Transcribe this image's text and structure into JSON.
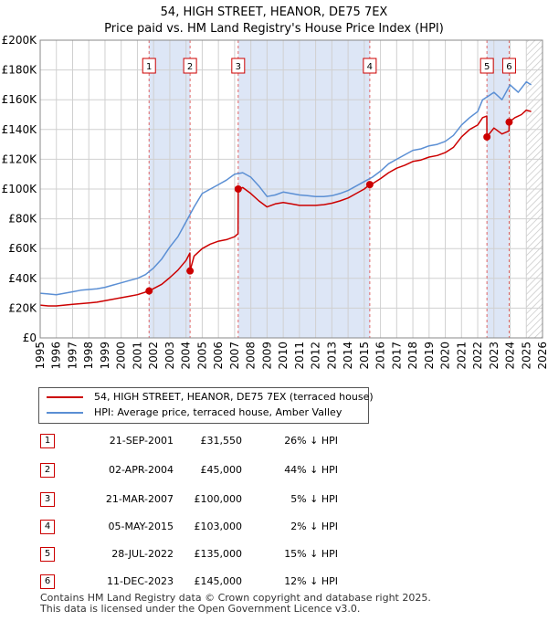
{
  "title_line1": "54, HIGH STREET, HEANOR, DE75 7EX",
  "title_line2": "Price paid vs. HM Land Registry's House Price Index (HPI)",
  "legend": {
    "property_label": "54, HIGH STREET, HEANOR, DE75 7EX (terraced house)",
    "hpi_label": "HPI: Average price, terraced house, Amber Valley"
  },
  "colors": {
    "property": "#cc0000",
    "hpi": "#5b8fd4",
    "shade": "#dde6f6",
    "grid": "#d0d0d0",
    "marker_line": "#e06666"
  },
  "sales": [
    {
      "num": "1",
      "date": "21-SEP-2001",
      "price": "£31,550",
      "hpi": "26% ↓ HPI"
    },
    {
      "num": "2",
      "date": "02-APR-2004",
      "price": "£45,000",
      "hpi": "44% ↓ HPI"
    },
    {
      "num": "3",
      "date": "21-MAR-2007",
      "price": "£100,000",
      "hpi": "5% ↓ HPI"
    },
    {
      "num": "4",
      "date": "05-MAY-2015",
      "price": "£103,000",
      "hpi": "2% ↓ HPI"
    },
    {
      "num": "5",
      "date": "28-JUL-2022",
      "price": "£135,000",
      "hpi": "15% ↓ HPI"
    },
    {
      "num": "6",
      "date": "11-DEC-2023",
      "price": "£145,000",
      "hpi": "12% ↓ HPI"
    }
  ],
  "footer_line1": "Contains HM Land Registry data © Crown copyright and database right 2025.",
  "footer_line2": "This data is licensed under the Open Government Licence v3.0.",
  "chart_data": {
    "type": "line",
    "title": "Price paid vs. HM Land Registry's House Price Index (HPI)",
    "xlabel": "",
    "ylabel": "",
    "xlim": [
      1995,
      2026
    ],
    "ylim": [
      0,
      200000
    ],
    "x_ticks": [
      "1995",
      "1996",
      "1997",
      "1998",
      "1999",
      "2000",
      "2001",
      "2002",
      "2003",
      "2004",
      "2005",
      "2006",
      "2007",
      "2008",
      "2009",
      "2010",
      "2011",
      "2012",
      "2013",
      "2014",
      "2015",
      "2016",
      "2017",
      "2018",
      "2019",
      "2020",
      "2021",
      "2022",
      "2023",
      "2024",
      "2025",
      "2026"
    ],
    "y_ticks": [
      {
        "value": 0,
        "label": "£0"
      },
      {
        "value": 20000,
        "label": "£20K"
      },
      {
        "value": 40000,
        "label": "£40K"
      },
      {
        "value": 60000,
        "label": "£60K"
      },
      {
        "value": 80000,
        "label": "£80K"
      },
      {
        "value": 100000,
        "label": "£100K"
      },
      {
        "value": 120000,
        "label": "£120K"
      },
      {
        "value": 140000,
        "label": "£140K"
      },
      {
        "value": 160000,
        "label": "£160K"
      },
      {
        "value": 180000,
        "label": "£180K"
      },
      {
        "value": 200000,
        "label": "£200K"
      }
    ],
    "shaded_ranges": [
      [
        2001.72,
        2004.25
      ],
      [
        2007.22,
        2015.34
      ],
      [
        2022.57,
        2023.94
      ]
    ],
    "hatched_after": 2025.0,
    "series": [
      {
        "name": "HPI: Average price, terraced house, Amber Valley",
        "x": [
          1995.0,
          1995.5,
          1996.0,
          1996.5,
          1997.0,
          1997.5,
          1998.0,
          1998.5,
          1999.0,
          1999.5,
          2000.0,
          2000.5,
          2001.0,
          2001.5,
          2002.0,
          2002.5,
          2003.0,
          2003.5,
          2004.0,
          2004.5,
          2005.0,
          2005.5,
          2006.0,
          2006.5,
          2007.0,
          2007.5,
          2008.0,
          2008.5,
          2009.0,
          2009.5,
          2010.0,
          2010.5,
          2011.0,
          2011.5,
          2012.0,
          2012.5,
          2013.0,
          2013.5,
          2014.0,
          2014.5,
          2015.0,
          2015.5,
          2016.0,
          2016.5,
          2017.0,
          2017.5,
          2018.0,
          2018.5,
          2019.0,
          2019.5,
          2020.0,
          2020.5,
          2021.0,
          2021.5,
          2022.0,
          2022.3,
          2022.6,
          2023.0,
          2023.5,
          2024.0,
          2024.5,
          2025.0,
          2025.3
        ],
        "values": [
          30000,
          29500,
          29000,
          30000,
          31000,
          32000,
          32500,
          33000,
          34000,
          35500,
          37000,
          38500,
          40000,
          42500,
          47000,
          53000,
          61000,
          68000,
          78000,
          88000,
          97000,
          100000,
          103000,
          106000,
          110000,
          111000,
          108000,
          102000,
          95000,
          96000,
          98000,
          97000,
          96000,
          95500,
          95000,
          95000,
          95500,
          97000,
          99000,
          102000,
          105000,
          108000,
          112000,
          117000,
          120000,
          123000,
          126000,
          127000,
          129000,
          130000,
          132000,
          136000,
          143000,
          148000,
          152000,
          160000,
          162000,
          165000,
          160000,
          170000,
          165000,
          172000,
          170000
        ]
      },
      {
        "name": "54, HIGH STREET, HEANOR, DE75 7EX (terraced house)",
        "x": [
          1995.0,
          1995.5,
          1996.0,
          1996.5,
          1997.0,
          1997.5,
          1998.0,
          1998.5,
          1999.0,
          1999.5,
          2000.0,
          2000.5,
          2001.0,
          2001.72,
          2002.5,
          2003.0,
          2003.5,
          2004.0,
          2004.24,
          2004.25,
          2004.5,
          2005.0,
          2005.5,
          2006.0,
          2006.5,
          2007.0,
          2007.21,
          2007.22,
          2007.5,
          2008.0,
          2008.5,
          2009.0,
          2009.5,
          2010.0,
          2010.5,
          2011.0,
          2011.5,
          2012.0,
          2012.5,
          2013.0,
          2013.5,
          2014.0,
          2014.5,
          2015.0,
          2015.34,
          2015.5,
          2016.0,
          2016.5,
          2017.0,
          2017.5,
          2018.0,
          2018.5,
          2019.0,
          2019.5,
          2020.0,
          2020.5,
          2021.0,
          2021.5,
          2022.0,
          2022.3,
          2022.56,
          2022.57,
          2023.0,
          2023.5,
          2023.93,
          2023.94,
          2024.3,
          2024.7,
          2025.0,
          2025.3
        ],
        "values": [
          22000,
          21500,
          21500,
          22000,
          22500,
          23000,
          23500,
          24000,
          25000,
          26000,
          27000,
          28000,
          29000,
          31550,
          36000,
          40500,
          45500,
          52000,
          57000,
          45000,
          55000,
          60000,
          63000,
          65000,
          66000,
          68000,
          70000,
          100000,
          101000,
          97000,
          92000,
          88000,
          90000,
          91000,
          90000,
          89000,
          89000,
          89000,
          89500,
          90500,
          92000,
          94000,
          97000,
          100000,
          103000,
          103500,
          107000,
          111000,
          114000,
          116000,
          118500,
          119500,
          121500,
          122500,
          124500,
          128000,
          135000,
          140000,
          143000,
          148000,
          149000,
          135000,
          141000,
          137000,
          139000,
          145000,
          148000,
          150000,
          153000,
          152000
        ]
      }
    ],
    "sale_points": [
      {
        "label": "1",
        "x": 2001.72,
        "y": 31550
      },
      {
        "label": "2",
        "x": 2004.25,
        "y": 45000
      },
      {
        "label": "3",
        "x": 2007.22,
        "y": 100000
      },
      {
        "label": "4",
        "x": 2015.34,
        "y": 103000
      },
      {
        "label": "5",
        "x": 2022.57,
        "y": 135000
      },
      {
        "label": "6",
        "x": 2023.94,
        "y": 145000
      }
    ]
  }
}
